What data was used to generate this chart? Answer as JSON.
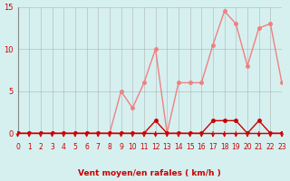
{
  "x": [
    0,
    1,
    2,
    3,
    4,
    5,
    6,
    7,
    8,
    9,
    10,
    11,
    12,
    13,
    14,
    15,
    16,
    17,
    18,
    19,
    20,
    21,
    22,
    23
  ],
  "rafales": [
    0,
    0,
    0,
    0,
    0,
    0,
    0,
    0,
    0,
    5,
    3,
    6,
    10,
    0,
    6,
    6,
    6,
    10.5,
    14.5,
    13,
    8,
    12.5,
    13,
    6
  ],
  "moyen": [
    0,
    0,
    0,
    0,
    0,
    0,
    0,
    0,
    0,
    0,
    0,
    0,
    1.5,
    0,
    0,
    0,
    0,
    1.5,
    1.5,
    1.5,
    0,
    1.5,
    0,
    0
  ],
  "bg_color": "#d6f0f0",
  "grid_color": "#aaaaaa",
  "line_color_rafales": "#f08080",
  "line_color_moyen": "#cc0000",
  "marker_color_rafales": "#f08080",
  "marker_color_moyen": "#cc0000",
  "arrow_color": "#cc0000",
  "xlabel": "Vent moyen/en rafales ( km/h )",
  "ylim": [
    0,
    15
  ],
  "xlim": [
    0,
    23
  ],
  "yticks": [
    0,
    5,
    10,
    15
  ],
  "xticks": [
    0,
    1,
    2,
    3,
    4,
    5,
    6,
    7,
    8,
    9,
    10,
    11,
    12,
    13,
    14,
    15,
    16,
    17,
    18,
    19,
    20,
    21,
    22,
    23
  ]
}
